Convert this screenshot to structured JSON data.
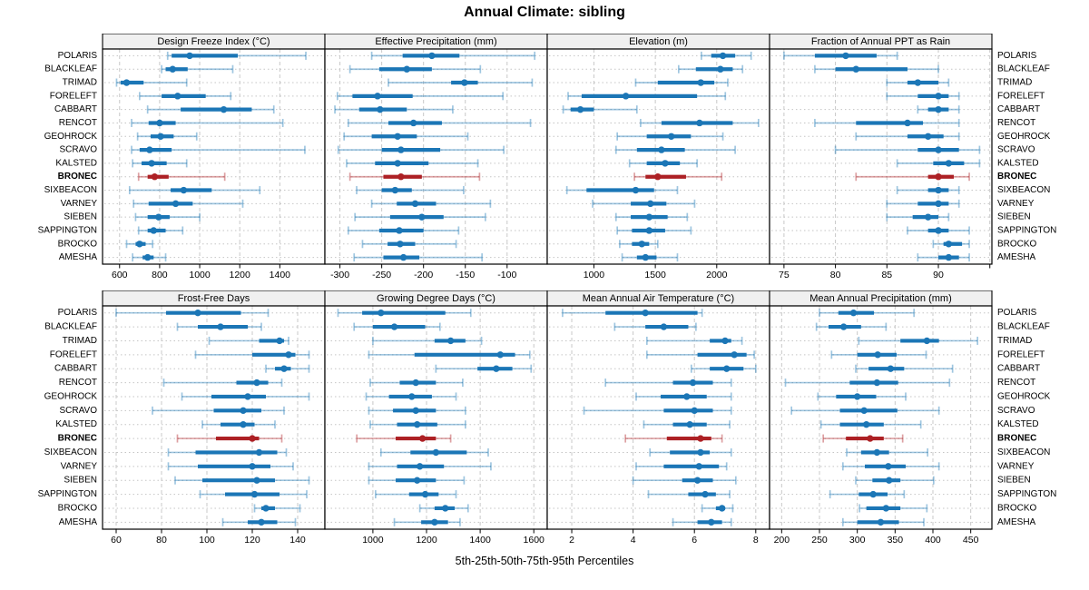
{
  "sites": [
    "POLARIS",
    "BLACKLEAF",
    "TRIMAD",
    "FORELEFT",
    "CABBART",
    "RENCOT",
    "GEOHROCK",
    "SCRAVO",
    "KALSTED",
    "BRONEC",
    "SIXBEACON",
    "VARNEY",
    "SIEBEN",
    "SAPPINGTON",
    "BROCKO",
    "AMESHA"
  ],
  "highlight_site": "BRONEC",
  "colors": {
    "series": "#1b76b6",
    "series_light": "rgba(27,118,182,0.42)",
    "highlight": "#ad2024",
    "highlight_light": "rgba(173,32,36,0.42)",
    "header_bg": "#f0f0f0",
    "panel_border": "#000000",
    "grid_vertical": "#c8c8c8",
    "grid_horizontal": "#c5c5c5",
    "text": "#000000"
  },
  "chart_data": {
    "type": "dotplot-trellis",
    "title": "Annual Climate: sibling",
    "xlabel": "5th-25th-50th-75th-95th Percentiles",
    "percentiles": [
      5,
      25,
      50,
      75,
      95
    ],
    "legend_position": "none",
    "grid": "on",
    "panels": [
      {
        "title": "Design Freeze Index (°C)",
        "xlim": [
          515,
          1625
        ],
        "ticks": [
          600,
          800,
          1000,
          1200,
          1400
        ],
        "tick_labels": [
          "600",
          "800",
          "1000",
          "1200",
          "1400"
        ],
        "data": [
          [
            840,
            860,
            950,
            1190,
            1530
          ],
          [
            810,
            830,
            865,
            940,
            1165
          ],
          [
            585,
            605,
            635,
            720,
            935
          ],
          [
            700,
            810,
            890,
            1030,
            1155
          ],
          [
            740,
            905,
            1120,
            1260,
            1370
          ],
          [
            660,
            745,
            800,
            880,
            1415
          ],
          [
            690,
            755,
            805,
            870,
            985
          ],
          [
            660,
            700,
            750,
            860,
            1525
          ],
          [
            665,
            710,
            760,
            835,
            935
          ],
          [
            695,
            740,
            775,
            845,
            1125
          ],
          [
            650,
            855,
            920,
            1060,
            1300
          ],
          [
            670,
            745,
            880,
            965,
            1215
          ],
          [
            680,
            740,
            795,
            850,
            1000
          ],
          [
            695,
            740,
            770,
            830,
            915
          ],
          [
            635,
            680,
            700,
            730,
            765
          ],
          [
            665,
            715,
            740,
            770,
            830
          ]
        ]
      },
      {
        "title": "Effective Precipitation (mm)",
        "xlim": [
          -318,
          -52
        ],
        "ticks": [
          -300,
          -250,
          -200,
          -150,
          -100
        ],
        "tick_labels": [
          "-300",
          "-250",
          "-200",
          "-150",
          "-100"
        ],
        "data": [
          [
            -262,
            -225,
            -190,
            -157,
            -67
          ],
          [
            -288,
            -253,
            -220,
            -190,
            -132
          ],
          [
            -242,
            -167,
            -151,
            -135,
            -70
          ],
          [
            -303,
            -285,
            -255,
            -213,
            -105
          ],
          [
            -306,
            -277,
            -252,
            -220,
            -165
          ],
          [
            -290,
            -242,
            -212,
            -178,
            -72
          ],
          [
            -295,
            -262,
            -231,
            -208,
            -147
          ],
          [
            -302,
            -250,
            -227,
            -180,
            -104
          ],
          [
            -292,
            -258,
            -231,
            -194,
            -135
          ],
          [
            -288,
            -248,
            -227,
            -202,
            -133
          ],
          [
            -280,
            -250,
            -234,
            -214,
            -152
          ],
          [
            -262,
            -232,
            -210,
            -185,
            -120
          ],
          [
            -282,
            -240,
            -202,
            -176,
            -126
          ],
          [
            -290,
            -253,
            -229,
            -200,
            -158
          ],
          [
            -273,
            -243,
            -228,
            -210,
            -161
          ],
          [
            -283,
            -248,
            -224,
            -205,
            -130
          ]
        ]
      },
      {
        "title": "Elevation (m)",
        "xlim": [
          620,
          2430
        ],
        "ticks": [
          1000,
          1500,
          2000
        ],
        "tick_labels": [
          "1000",
          "1500",
          "2000"
        ],
        "data": [
          [
            1875,
            1955,
            2050,
            2150,
            2280
          ],
          [
            1690,
            1830,
            2030,
            2130,
            2210
          ],
          [
            1340,
            1520,
            1870,
            1980,
            2090
          ],
          [
            790,
            900,
            1260,
            1840,
            2070
          ],
          [
            750,
            810,
            890,
            1000,
            1350
          ],
          [
            1380,
            1550,
            1860,
            2130,
            2340
          ],
          [
            1190,
            1430,
            1630,
            1790,
            2050
          ],
          [
            1180,
            1350,
            1550,
            1740,
            2150
          ],
          [
            1290,
            1430,
            1580,
            1700,
            1840
          ],
          [
            1330,
            1420,
            1520,
            1750,
            2040
          ],
          [
            780,
            940,
            1340,
            1490,
            1680
          ],
          [
            990,
            1300,
            1460,
            1590,
            1820
          ],
          [
            1180,
            1300,
            1450,
            1600,
            1760
          ],
          [
            1190,
            1310,
            1450,
            1580,
            1790
          ],
          [
            1210,
            1310,
            1390,
            1450,
            1520
          ],
          [
            1230,
            1350,
            1420,
            1510,
            1680
          ]
        ]
      },
      {
        "title": "Fraction of Annual PPT as Rain",
        "xlim": [
          73.6,
          95.2
        ],
        "ticks": [
          75,
          80,
          85,
          90,
          95
        ],
        "tick_labels": [
          "75",
          "80",
          "85",
          "90",
          ""
        ],
        "data": [
          [
            75,
            78,
            81,
            84,
            86
          ],
          [
            78,
            80,
            82,
            87,
            90
          ],
          [
            85,
            87,
            88,
            90,
            91
          ],
          [
            85,
            88,
            90,
            91,
            92
          ],
          [
            88,
            89,
            90,
            91,
            92
          ],
          [
            78,
            82,
            87,
            88.5,
            92
          ],
          [
            82,
            87,
            89,
            90.5,
            92
          ],
          [
            80,
            88,
            90,
            92,
            94
          ],
          [
            86,
            89.5,
            91,
            92.5,
            94
          ],
          [
            82,
            89,
            90,
            91.5,
            93
          ],
          [
            86,
            89,
            90,
            91,
            92
          ],
          [
            85,
            88,
            90,
            91,
            92
          ],
          [
            85,
            87.5,
            89,
            90,
            91
          ],
          [
            87,
            89,
            90,
            91,
            93
          ],
          [
            89.5,
            90.5,
            91,
            92.3,
            93
          ],
          [
            88,
            90,
            91,
            92,
            93
          ]
        ]
      },
      {
        "title": "Frost-Free Days",
        "xlim": [
          54,
          152
        ],
        "ticks": [
          60,
          80,
          100,
          120,
          140
        ],
        "tick_labels": [
          "60",
          "80",
          "100",
          "120",
          "140"
        ],
        "data": [
          [
            60,
            82,
            96,
            115,
            127
          ],
          [
            87,
            96,
            106,
            118,
            124
          ],
          [
            101,
            123,
            132,
            134,
            136
          ],
          [
            95,
            120,
            136,
            139,
            145
          ],
          [
            126,
            130,
            134,
            137,
            145
          ],
          [
            81,
            113,
            122,
            127,
            133
          ],
          [
            89,
            102,
            118,
            126,
            145
          ],
          [
            76,
            103,
            116,
            124,
            134
          ],
          [
            98,
            106,
            116,
            121,
            130
          ],
          [
            87,
            104,
            120,
            123,
            133
          ],
          [
            83,
            95,
            123,
            131,
            135
          ],
          [
            83,
            96,
            120,
            128,
            138
          ],
          [
            86,
            98,
            122,
            130,
            145
          ],
          [
            97,
            108,
            121,
            132,
            144
          ],
          [
            121,
            124,
            126,
            130,
            141
          ],
          [
            107,
            118,
            124,
            131,
            139
          ]
        ]
      },
      {
        "title": "Growing Degree Days (°C)",
        "xlim": [
          821,
          1650
        ],
        "ticks": [
          1000,
          1200,
          1400,
          1600
        ],
        "tick_labels": [
          "1000",
          "1200",
          "1400",
          "1600"
        ],
        "data": [
          [
            870,
            960,
            1030,
            1270,
            1365
          ],
          [
            930,
            1000,
            1080,
            1195,
            1250
          ],
          [
            1000,
            1230,
            1290,
            1345,
            1405
          ],
          [
            985,
            1155,
            1475,
            1530,
            1585
          ],
          [
            1235,
            1390,
            1460,
            1520,
            1590
          ],
          [
            990,
            1100,
            1160,
            1235,
            1335
          ],
          [
            975,
            1060,
            1145,
            1220,
            1310
          ],
          [
            985,
            1075,
            1160,
            1235,
            1345
          ],
          [
            990,
            1090,
            1165,
            1240,
            1345
          ],
          [
            940,
            1085,
            1185,
            1235,
            1290
          ],
          [
            1030,
            1140,
            1235,
            1350,
            1430
          ],
          [
            985,
            1090,
            1175,
            1265,
            1440
          ],
          [
            985,
            1085,
            1165,
            1235,
            1340
          ],
          [
            1010,
            1135,
            1195,
            1245,
            1310
          ],
          [
            1175,
            1230,
            1270,
            1305,
            1355
          ],
          [
            1080,
            1180,
            1230,
            1280,
            1325
          ]
        ]
      },
      {
        "title": "Mean Annual Air Temperature (°C)",
        "xlim": [
          1.2,
          8.45
        ],
        "ticks": [
          2,
          4,
          6,
          8
        ],
        "tick_labels": [
          "2",
          "4",
          "6",
          "8"
        ],
        "data": [
          [
            1.7,
            3.1,
            4.4,
            6.1,
            6.25
          ],
          [
            3.4,
            4.4,
            5.0,
            5.8,
            6.05
          ],
          [
            4.45,
            6.5,
            7.0,
            7.2,
            7.55
          ],
          [
            4.45,
            6.1,
            7.3,
            7.7,
            7.95
          ],
          [
            5.9,
            6.5,
            7.05,
            7.6,
            8.0
          ],
          [
            3.1,
            5.3,
            5.95,
            6.6,
            7.2
          ],
          [
            4.1,
            4.9,
            5.75,
            6.4,
            7.2
          ],
          [
            2.4,
            5.0,
            6.0,
            6.6,
            7.2
          ],
          [
            4.35,
            5.3,
            5.85,
            6.4,
            7.15
          ],
          [
            3.75,
            5.1,
            6.2,
            6.55,
            6.9
          ],
          [
            4.55,
            5.2,
            6.2,
            6.5,
            7.2
          ],
          [
            4.1,
            5.0,
            6.15,
            6.8,
            7.05
          ],
          [
            4.0,
            5.6,
            6.1,
            6.6,
            7.35
          ],
          [
            4.5,
            5.8,
            6.35,
            6.7,
            7.15
          ],
          [
            6.25,
            6.7,
            6.9,
            7.0,
            7.25
          ],
          [
            5.3,
            6.1,
            6.55,
            6.9,
            7.2
          ]
        ]
      },
      {
        "title": "Mean Annual Precipitation (mm)",
        "xlim": [
          184,
          478
        ],
        "ticks": [
          200,
          250,
          300,
          350,
          400,
          450
        ],
        "tick_labels": [
          "200",
          "250",
          "300",
          "350",
          "400",
          "450"
        ],
        "data": [
          [
            250,
            275,
            295,
            322,
            375
          ],
          [
            246,
            262,
            282,
            305,
            338
          ],
          [
            302,
            357,
            392,
            408,
            459
          ],
          [
            266,
            300,
            327,
            352,
            391
          ],
          [
            298,
            315,
            344,
            362,
            426
          ],
          [
            205,
            290,
            326,
            354,
            422
          ],
          [
            248,
            272,
            300,
            325,
            364
          ],
          [
            213,
            277,
            309,
            353,
            408
          ],
          [
            252,
            277,
            312,
            335,
            384
          ],
          [
            255,
            285,
            317,
            335,
            360
          ],
          [
            286,
            305,
            326,
            342,
            393
          ],
          [
            281,
            310,
            341,
            364,
            408
          ],
          [
            298,
            320,
            342,
            357,
            401
          ],
          [
            264,
            302,
            321,
            340,
            362
          ],
          [
            303,
            312,
            338,
            357,
            392
          ],
          [
            281,
            300,
            331,
            355,
            388
          ]
        ]
      }
    ]
  }
}
